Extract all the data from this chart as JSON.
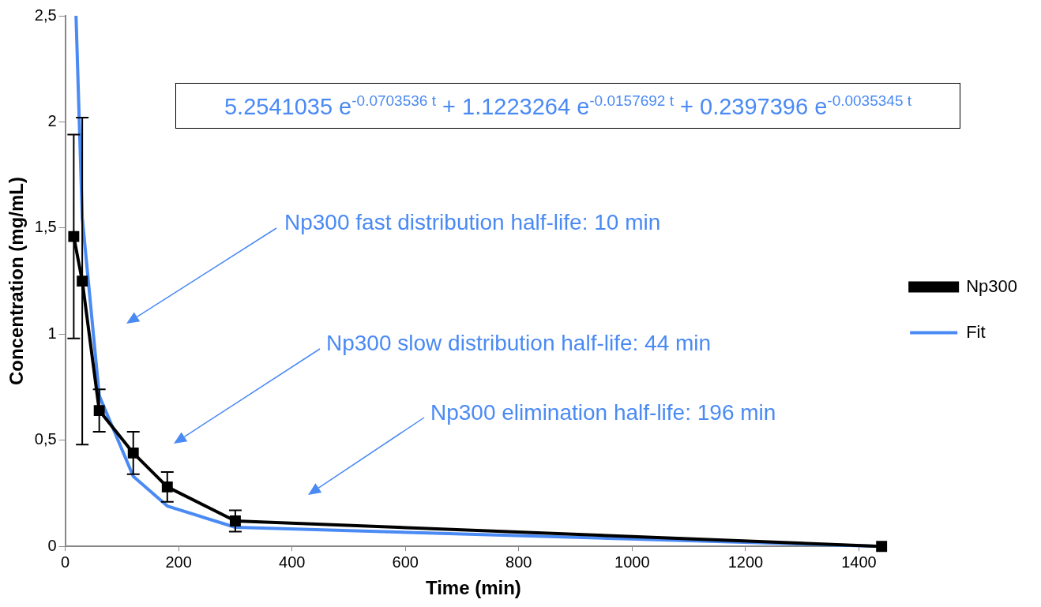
{
  "chart_data": {
    "type": "line",
    "xlabel": "Time (min)",
    "ylabel": "Concentration (mg/mL)",
    "x": [
      15,
      30,
      60,
      120,
      180,
      300,
      1440
    ],
    "series": [
      {
        "name": "Np300",
        "color": "#000000",
        "values": [
          1.46,
          1.25,
          0.64,
          0.44,
          0.28,
          0.12,
          0
        ],
        "errors": [
          0.48,
          0.77,
          0.1,
          0.1,
          0.07,
          0.05,
          null
        ],
        "marker": "square"
      },
      {
        "name": "Fit",
        "color": "#4a8af4",
        "x": [
          19,
          30,
          60,
          120,
          180,
          300,
          1440
        ],
        "values": [
          2.5,
          1.55,
          0.71,
          0.33,
          0.19,
          0.09,
          0
        ],
        "marker": "none"
      }
    ],
    "xlim": [
      0,
      1440
    ],
    "xticks": [
      0,
      200,
      400,
      600,
      800,
      1000,
      1200,
      1400
    ],
    "ylim": [
      0,
      2.5
    ],
    "yticks": [
      0,
      {
        "value": 0.5,
        "label": "0,5"
      },
      1,
      {
        "value": 1.5,
        "label": "1,5"
      },
      2,
      {
        "value": 2.5,
        "label": "2,5"
      }
    ],
    "grid": false,
    "legend": "right",
    "annotations": [
      "5.2541035 e$^{-0.0703536 t}$ + 1.1223264 e$^{-0.0157692 t}$ + 0.2397396 e$^{-0.0035345 t}$",
      "Np300 fast distribution half-life: 10 min",
      "Np300 slow distribution half-life: 44 min",
      "Np300 elimination half-life: 196 min"
    ]
  }
}
